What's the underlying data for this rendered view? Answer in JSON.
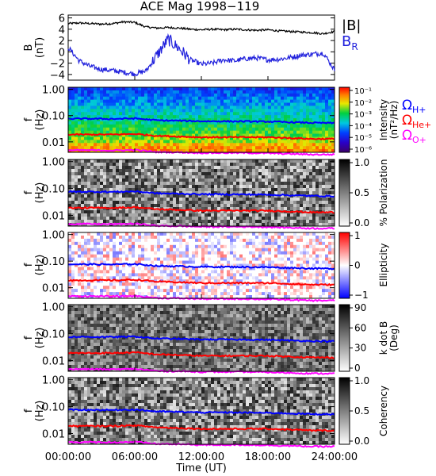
{
  "title": "ACE Mag 1998−119",
  "colors": {
    "total_field": "#000000",
    "radial_field": "#2222dd",
    "gyro_h": "#0000ff",
    "gyro_he": "#ff0000",
    "gyro_o": "#ff00ff"
  },
  "legend": {
    "total_label": "|B|",
    "radial_main": "B",
    "radial_sub": "R"
  },
  "gyro_labels": {
    "h_main": "Ω",
    "h_sub": "H+",
    "he_main": "Ω",
    "he_sub": "He+",
    "o_main": "Ω",
    "o_sub": "O+"
  },
  "xaxis": {
    "label": "Time (UT)",
    "ticks": [
      "00:00:00",
      "06:00:00",
      "12:00:00",
      "18:00:00",
      "24:00:00"
    ]
  },
  "chart_data": [
    {
      "type": "line",
      "ylabel": "B",
      "yunit": "(nT)",
      "ylim": [
        -5,
        6.5
      ],
      "yticks": [
        "6",
        "4",
        "2",
        "0",
        "−2",
        "−4"
      ],
      "x_hours": [
        0,
        1,
        2,
        3,
        4,
        5,
        6,
        7,
        8,
        9,
        10,
        11,
        12,
        13,
        14,
        15,
        16,
        17,
        18,
        19,
        20,
        21,
        22,
        23,
        24
      ],
      "series": [
        {
          "name": "|B|",
          "values": [
            5.0,
            5.1,
            5.0,
            4.9,
            5.0,
            5.3,
            5.2,
            4.4,
            4.2,
            4.3,
            4.2,
            4.0,
            3.9,
            4.0,
            3.9,
            4.0,
            3.9,
            3.8,
            3.9,
            3.7,
            3.6,
            3.5,
            3.4,
            3.2,
            3.6
          ]
        },
        {
          "name": "B_R",
          "values": [
            0.8,
            -1.6,
            -2.6,
            -3.1,
            -3.3,
            -3.6,
            -3.9,
            -3.4,
            -0.6,
            2.2,
            0.6,
            -1.4,
            -2.2,
            -2.0,
            -1.4,
            -1.6,
            -1.2,
            -1.1,
            -1.4,
            -1.3,
            -1.0,
            -0.6,
            -0.4,
            -0.2,
            -3.2
          ]
        }
      ]
    },
    {
      "type": "heatmap",
      "ylabel": "f",
      "yunit": "(Hz)",
      "yticks": [
        "1.00",
        "0.10",
        "0.01"
      ],
      "colorbar_label": "Intensity",
      "colorbar_unit": "(nT²/Hz)",
      "colorbar_ticks": [
        "10⁻¹",
        "10⁻²",
        "10⁻³",
        "10⁻⁴",
        "10⁻⁵",
        "10⁻⁶"
      ]
    },
    {
      "type": "heatmap",
      "ylabel": "f",
      "yunit": "(Hz)",
      "yticks": [
        "1.00",
        "0.10",
        "0.01"
      ],
      "colorbar_label": "% Polarization",
      "colorbar_ticks": [
        "1.0",
        "0.5",
        "0.0"
      ]
    },
    {
      "type": "heatmap",
      "ylabel": "f",
      "yunit": "(Hz)",
      "yticks": [
        "1.00",
        "0.10",
        "0.01"
      ],
      "colorbar_label": "Ellipticity",
      "colorbar_ticks": [
        "1",
        "0",
        "−1"
      ]
    },
    {
      "type": "heatmap",
      "ylabel": "f",
      "yunit": "(Hz)",
      "yticks": [
        "1.00",
        "0.10",
        "0.01"
      ],
      "colorbar_label": "k dot B",
      "colorbar_unit": "(Deg)",
      "colorbar_ticks": [
        "90",
        "60",
        "30",
        "0"
      ]
    },
    {
      "type": "heatmap",
      "ylabel": "f",
      "yunit": "(Hz)",
      "yticks": [
        "1.00",
        "0.10",
        "0.01"
      ],
      "colorbar_label": "Coherency",
      "colorbar_ticks": [
        "1.0",
        "0.5",
        "0.0"
      ]
    }
  ],
  "gyrofrequency_hz": {
    "x_hours": [
      0,
      2,
      4,
      6,
      8,
      10,
      12,
      14,
      16,
      18,
      20,
      22,
      24
    ],
    "h_plus": [
      0.076,
      0.076,
      0.075,
      0.078,
      0.066,
      0.064,
      0.061,
      0.061,
      0.06,
      0.059,
      0.056,
      0.053,
      0.052
    ],
    "he_plus": [
      0.019,
      0.019,
      0.019,
      0.02,
      0.017,
      0.016,
      0.015,
      0.015,
      0.015,
      0.015,
      0.014,
      0.013,
      0.013
    ],
    "o_plus": [
      0.0048,
      0.0048,
      0.0047,
      0.0049,
      0.0041,
      0.004,
      0.0038,
      0.0038,
      0.0038,
      0.0037,
      0.0035,
      0.0033,
      0.0033
    ]
  }
}
